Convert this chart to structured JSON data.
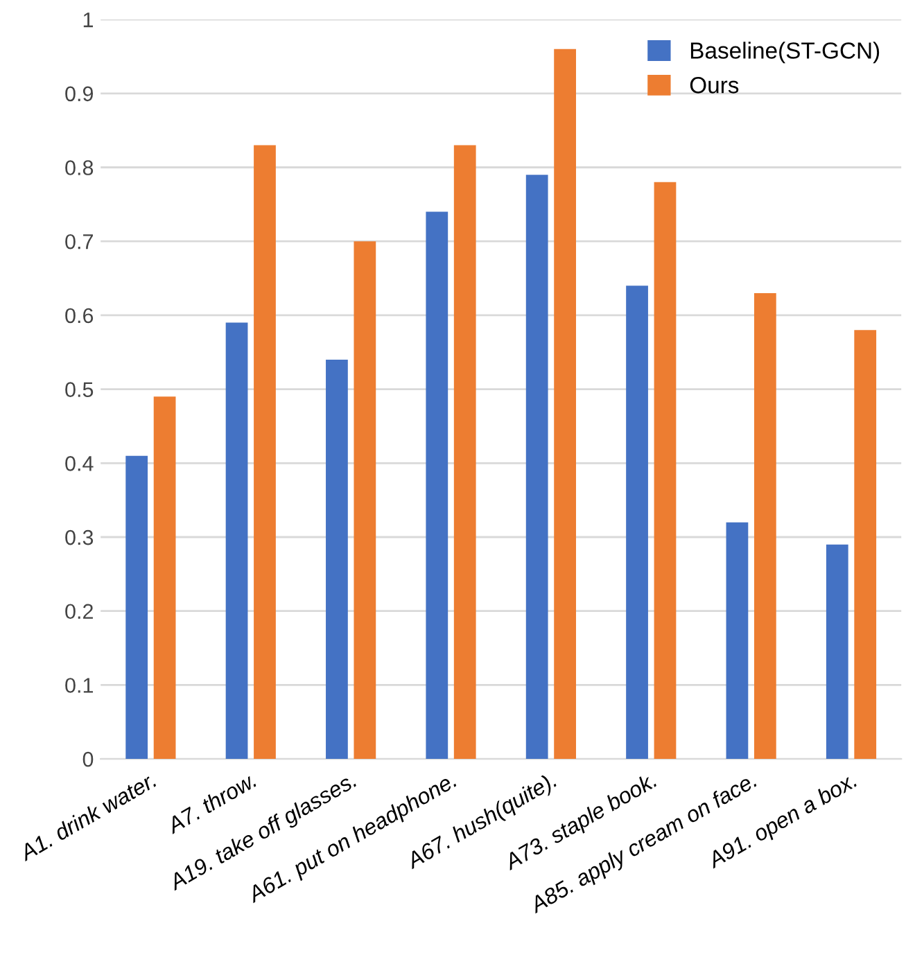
{
  "chart_data": {
    "type": "bar",
    "categories": [
      "A1. drink water.",
      "A7. throw.",
      "A19. take off glasses.",
      "A61. put on headphone.",
      "A67. hush(quite).",
      "A73. staple book.",
      "A85. apply cream on face.",
      "A91. open a box."
    ],
    "series": [
      {
        "name": "Baseline(ST-GCN)",
        "color": "#4472c4",
        "values": [
          0.41,
          0.59,
          0.54,
          0.74,
          0.79,
          0.64,
          0.32,
          0.29
        ]
      },
      {
        "name": "Ours",
        "color": "#ed7d31",
        "values": [
          0.49,
          0.83,
          0.7,
          0.83,
          0.96,
          0.78,
          0.63,
          0.58
        ]
      }
    ],
    "ylim": [
      0,
      1
    ],
    "yticks": [
      0,
      0.1,
      0.2,
      0.3,
      0.4,
      0.5,
      0.6,
      0.7,
      0.8,
      0.9,
      1
    ],
    "grid": "y",
    "legend": "top right"
  }
}
